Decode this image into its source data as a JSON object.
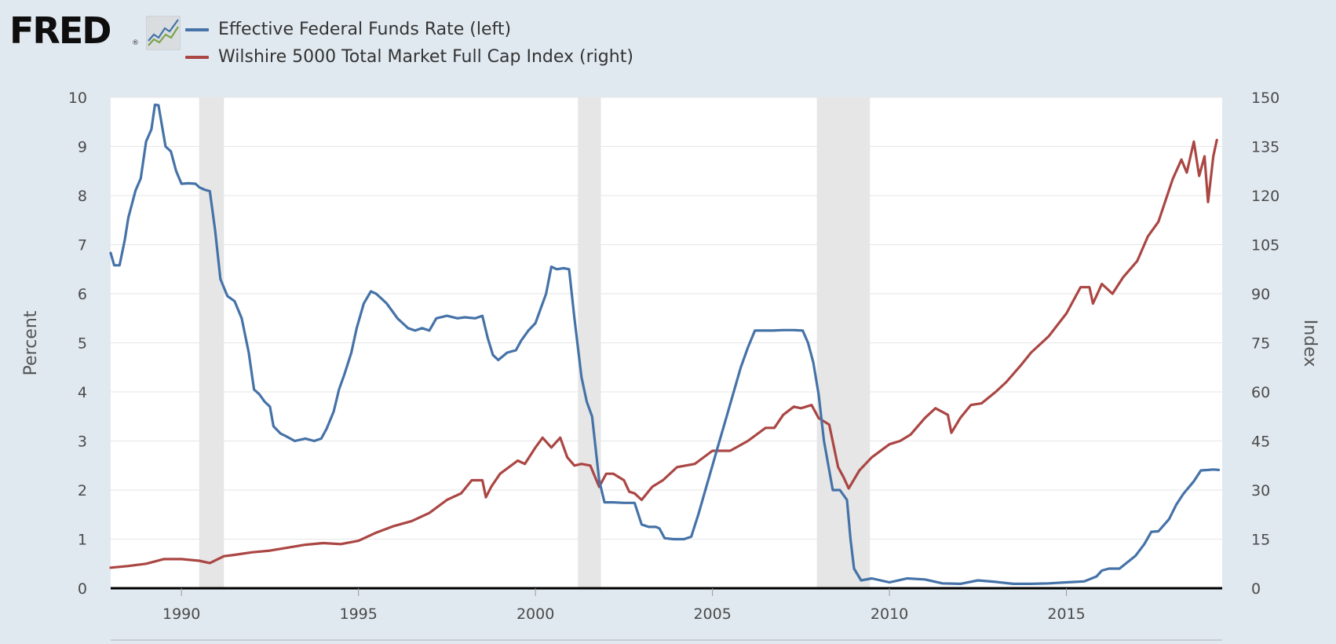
{
  "header": {
    "logo_text": "FRED",
    "logo_reg": "®"
  },
  "chart_data": {
    "type": "line",
    "title": "",
    "xlabel": "",
    "ylabel": "Percent",
    "ylabel_right": "Index",
    "xlim": [
      1988.0,
      2019.4
    ],
    "ylim": [
      0,
      10
    ],
    "ylim_right": [
      0,
      150
    ],
    "x_ticks": [
      1990,
      1995,
      2000,
      2005,
      2010,
      2015
    ],
    "y_ticks": [
      0,
      1,
      2,
      3,
      4,
      5,
      6,
      7,
      8,
      9,
      10
    ],
    "y_ticks_right": [
      0,
      15,
      30,
      45,
      60,
      75,
      90,
      105,
      120,
      135,
      150
    ],
    "grid": true,
    "legend_position": "top-left",
    "recessions": [
      [
        1990.5,
        1991.2
      ],
      [
        2001.2,
        2001.85
      ],
      [
        2007.95,
        2009.45
      ]
    ],
    "series": [
      {
        "name": "Effective Federal Funds Rate (left)",
        "axis": "left",
        "color": "#4572a7",
        "x": [
          1988.0,
          1988.1,
          1988.25,
          1988.4,
          1988.5,
          1988.7,
          1988.85,
          1989.0,
          1989.15,
          1989.25,
          1989.35,
          1989.55,
          1989.7,
          1989.85,
          1990.0,
          1990.2,
          1990.4,
          1990.5,
          1990.65,
          1990.8,
          1990.95,
          1991.1,
          1991.3,
          1991.5,
          1991.7,
          1991.9,
          1992.05,
          1992.2,
          1992.35,
          1992.5,
          1992.6,
          1992.8,
          1992.95,
          1993.2,
          1993.5,
          1993.75,
          1993.95,
          1994.1,
          1994.3,
          1994.45,
          1994.6,
          1994.8,
          1994.95,
          1995.15,
          1995.35,
          1995.5,
          1995.65,
          1995.8,
          1996.0,
          1996.1,
          1996.4,
          1996.6,
          1996.8,
          1997.0,
          1997.2,
          1997.5,
          1997.8,
          1998.0,
          1998.3,
          1998.5,
          1998.65,
          1998.8,
          1998.95,
          1999.2,
          1999.45,
          1999.6,
          1999.8,
          2000.0,
          2000.15,
          2000.3,
          2000.45,
          2000.6,
          2000.8,
          2000.95,
          2001.1,
          2001.3,
          2001.45,
          2001.6,
          2001.8,
          2001.95,
          2002.2,
          2002.5,
          2002.8,
          2003.0,
          2003.2,
          2003.4,
          2003.5,
          2003.65,
          2003.9,
          2004.2,
          2004.4,
          2004.6,
          2004.8,
          2005.0,
          2005.2,
          2005.4,
          2005.6,
          2005.8,
          2006.0,
          2006.2,
          2006.4,
          2006.5,
          2006.7,
          2007.0,
          2007.3,
          2007.55,
          2007.7,
          2007.85,
          2008.0,
          2008.15,
          2008.25,
          2008.4,
          2008.6,
          2008.8,
          2008.9,
          2009.0,
          2009.2,
          2009.5,
          2010.0,
          2010.5,
          2011.0,
          2011.5,
          2012.0,
          2012.5,
          2013.0,
          2013.5,
          2014.0,
          2014.5,
          2015.0,
          2015.5,
          2015.85,
          2016.0,
          2016.2,
          2016.5,
          2016.95,
          2017.2,
          2017.4,
          2017.6,
          2017.9,
          2018.1,
          2018.3,
          2018.6,
          2018.8,
          2019.0,
          2019.15,
          2019.3
        ],
        "y": [
          6.83,
          6.58,
          6.58,
          7.1,
          7.55,
          8.1,
          8.35,
          9.1,
          9.35,
          9.85,
          9.84,
          9.0,
          8.9,
          8.5,
          8.24,
          8.25,
          8.24,
          8.17,
          8.12,
          8.09,
          7.3,
          6.3,
          5.95,
          5.85,
          5.5,
          4.8,
          4.05,
          3.95,
          3.8,
          3.7,
          3.3,
          3.15,
          3.1,
          3.0,
          3.05,
          3.0,
          3.05,
          3.25,
          3.6,
          4.05,
          4.35,
          4.8,
          5.3,
          5.8,
          6.05,
          6.0,
          5.9,
          5.8,
          5.6,
          5.5,
          5.3,
          5.25,
          5.3,
          5.25,
          5.5,
          5.55,
          5.5,
          5.52,
          5.5,
          5.55,
          5.1,
          4.75,
          4.65,
          4.8,
          4.85,
          5.05,
          5.25,
          5.4,
          5.7,
          6.0,
          6.55,
          6.5,
          6.52,
          6.5,
          5.5,
          4.3,
          3.8,
          3.5,
          2.2,
          1.75,
          1.75,
          1.74,
          1.74,
          1.3,
          1.25,
          1.25,
          1.22,
          1.02,
          1.0,
          1.0,
          1.05,
          1.5,
          2.0,
          2.5,
          3.0,
          3.5,
          4.0,
          4.5,
          4.9,
          5.25,
          5.25,
          5.25,
          5.25,
          5.26,
          5.26,
          5.25,
          5.0,
          4.6,
          3.95,
          3.0,
          2.6,
          2.0,
          2.0,
          1.8,
          1.0,
          0.4,
          0.16,
          0.2,
          0.12,
          0.2,
          0.18,
          0.1,
          0.09,
          0.16,
          0.13,
          0.09,
          0.09,
          0.1,
          0.12,
          0.14,
          0.24,
          0.36,
          0.4,
          0.4,
          0.66,
          0.9,
          1.15,
          1.16,
          1.41,
          1.7,
          1.92,
          2.18,
          2.4,
          2.41,
          2.42,
          2.41
        ]
      },
      {
        "name": "Wilshire 5000 Total Market Full Cap Index (right)",
        "axis": "right",
        "color": "#aa4643",
        "x": [
          1988.0,
          1988.5,
          1989.0,
          1989.5,
          1990.0,
          1990.5,
          1990.8,
          1991.2,
          1991.5,
          1992.0,
          1992.5,
          1993.0,
          1993.5,
          1994.0,
          1994.5,
          1995.0,
          1995.5,
          1996.0,
          1996.5,
          1997.0,
          1997.5,
          1997.9,
          1998.2,
          1998.5,
          1998.6,
          1998.75,
          1999.0,
          1999.5,
          1999.7,
          2000.0,
          2000.2,
          2000.45,
          2000.7,
          2000.9,
          2001.1,
          2001.3,
          2001.55,
          2001.8,
          2002.0,
          2002.2,
          2002.5,
          2002.65,
          2002.8,
          2003.0,
          2003.3,
          2003.6,
          2004.0,
          2004.5,
          2005.0,
          2005.5,
          2006.0,
          2006.5,
          2006.75,
          2007.0,
          2007.3,
          2007.5,
          2007.8,
          2008.0,
          2008.3,
          2008.55,
          2008.7,
          2008.85,
          2009.15,
          2009.5,
          2010.0,
          2010.3,
          2010.6,
          2011.0,
          2011.3,
          2011.65,
          2011.75,
          2012.0,
          2012.3,
          2012.6,
          2013.0,
          2013.3,
          2013.7,
          2014.0,
          2014.5,
          2015.0,
          2015.4,
          2015.65,
          2015.75,
          2016.0,
          2016.3,
          2016.6,
          2017.0,
          2017.3,
          2017.6,
          2018.0,
          2018.25,
          2018.4,
          2018.6,
          2018.75,
          2018.9,
          2019.0,
          2019.15,
          2019.25
        ],
        "y": [
          6.3,
          6.8,
          7.5,
          8.9,
          8.9,
          8.4,
          7.7,
          9.8,
          10.2,
          11.0,
          11.5,
          12.4,
          13.3,
          13.8,
          13.5,
          14.5,
          17.0,
          19.0,
          20.5,
          23.0,
          27.0,
          29.0,
          33.0,
          33.0,
          27.8,
          31.0,
          35.0,
          39.0,
          38.0,
          43.0,
          46.0,
          43.0,
          46.0,
          40.0,
          37.5,
          38.0,
          37.5,
          31.0,
          35.0,
          35.0,
          33.0,
          29.5,
          29.0,
          27.0,
          31.0,
          33.0,
          37.0,
          38.0,
          42.0,
          42.0,
          45.0,
          49.0,
          49.0,
          53.0,
          55.5,
          55.0,
          56.0,
          52.0,
          50.0,
          37.0,
          34.0,
          30.5,
          36.0,
          40.0,
          44.0,
          45.0,
          47.0,
          52.0,
          55.0,
          53.0,
          47.5,
          52.0,
          56.0,
          56.5,
          60.0,
          63.0,
          68.0,
          72.0,
          77.0,
          84.0,
          92.0,
          92.0,
          87.0,
          93.0,
          90.0,
          95.0,
          100.0,
          107.5,
          112.0,
          125.0,
          131.0,
          127.0,
          136.5,
          126.0,
          132.0,
          118.0,
          132.0,
          137.0
        ]
      }
    ]
  }
}
